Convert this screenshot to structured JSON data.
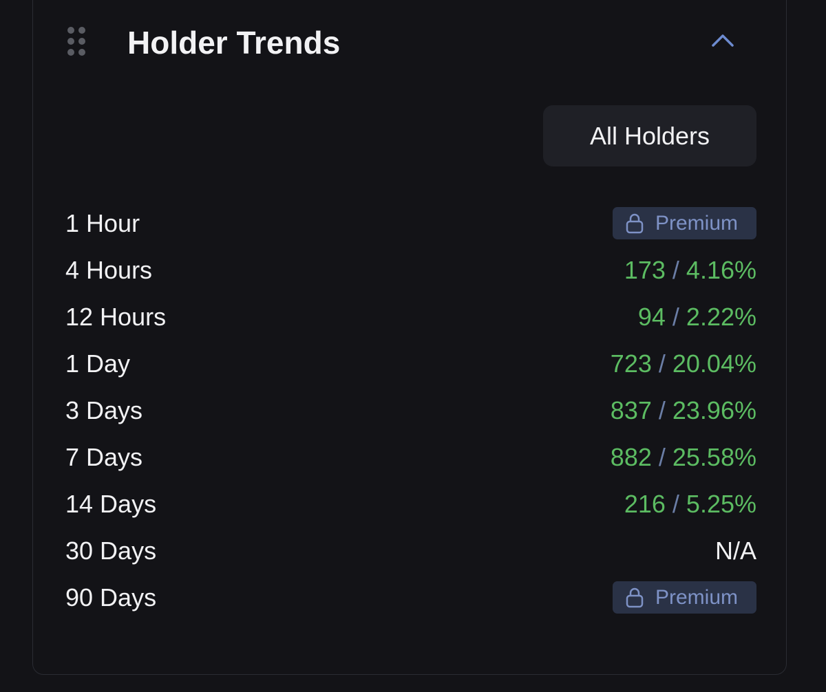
{
  "header": {
    "title": "Holder Trends"
  },
  "filter": {
    "label": "All Holders"
  },
  "separator": "/",
  "rows": [
    {
      "label": "1 Hour",
      "status": "Premium"
    },
    {
      "label": "4 Hours",
      "count": "173",
      "percent": "4.16%"
    },
    {
      "label": "12 Hours",
      "count": "94",
      "percent": "2.22%"
    },
    {
      "label": "1 Day",
      "count": "723",
      "percent": "20.04%"
    },
    {
      "label": "3 Days",
      "count": "837",
      "percent": "23.96%"
    },
    {
      "label": "7 Days",
      "count": "882",
      "percent": "25.58%"
    },
    {
      "label": "14 Days",
      "count": "216",
      "percent": "5.25%"
    },
    {
      "label": "30 Days",
      "status": "N/A"
    },
    {
      "label": "90 Days",
      "status": "Premium"
    }
  ]
}
